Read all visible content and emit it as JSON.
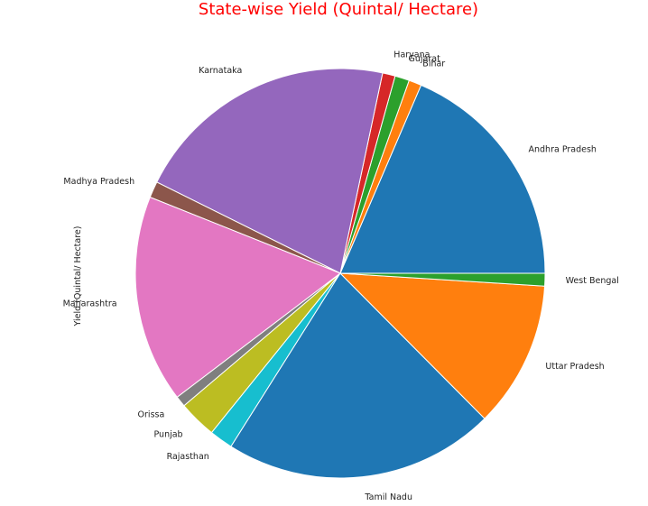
{
  "chart_data": {
    "type": "pie",
    "title": "State-wise Yield (Quintal/ Hectare)",
    "ylabel": "Yield (Quintal/ Hectare)",
    "title_color": "#ff0000",
    "start_angle_deg": 0,
    "direction": "counterclockwise",
    "slices": [
      {
        "label": "Andhra Pradesh",
        "value": 130,
        "color": "#1f77b4"
      },
      {
        "label": "Bihar",
        "value": 7,
        "color": "#ff7f0e"
      },
      {
        "label": "Gujarat",
        "value": 8,
        "color": "#2ca02c"
      },
      {
        "label": "Haryana",
        "value": 7,
        "color": "#d62728"
      },
      {
        "label": "Karnataka",
        "value": 147,
        "color": "#9467bd"
      },
      {
        "label": "Madhya Pradesh",
        "value": 9,
        "color": "#8c564b"
      },
      {
        "label": "Maharashtra",
        "value": 115,
        "color": "#e377c2"
      },
      {
        "label": "Orissa",
        "value": 6,
        "color": "#7f7f7f"
      },
      {
        "label": "Punjab",
        "value": 21,
        "color": "#bcbd22"
      },
      {
        "label": "Rajasthan",
        "value": 13,
        "color": "#17becf"
      },
      {
        "label": "Tamil Nadu",
        "value": 150,
        "color": "#1f77b4"
      },
      {
        "label": "Uttar Pradesh",
        "value": 81,
        "color": "#ff7f0e"
      },
      {
        "label": "West Bengal",
        "value": 7,
        "color": "#2ca02c"
      }
    ]
  }
}
